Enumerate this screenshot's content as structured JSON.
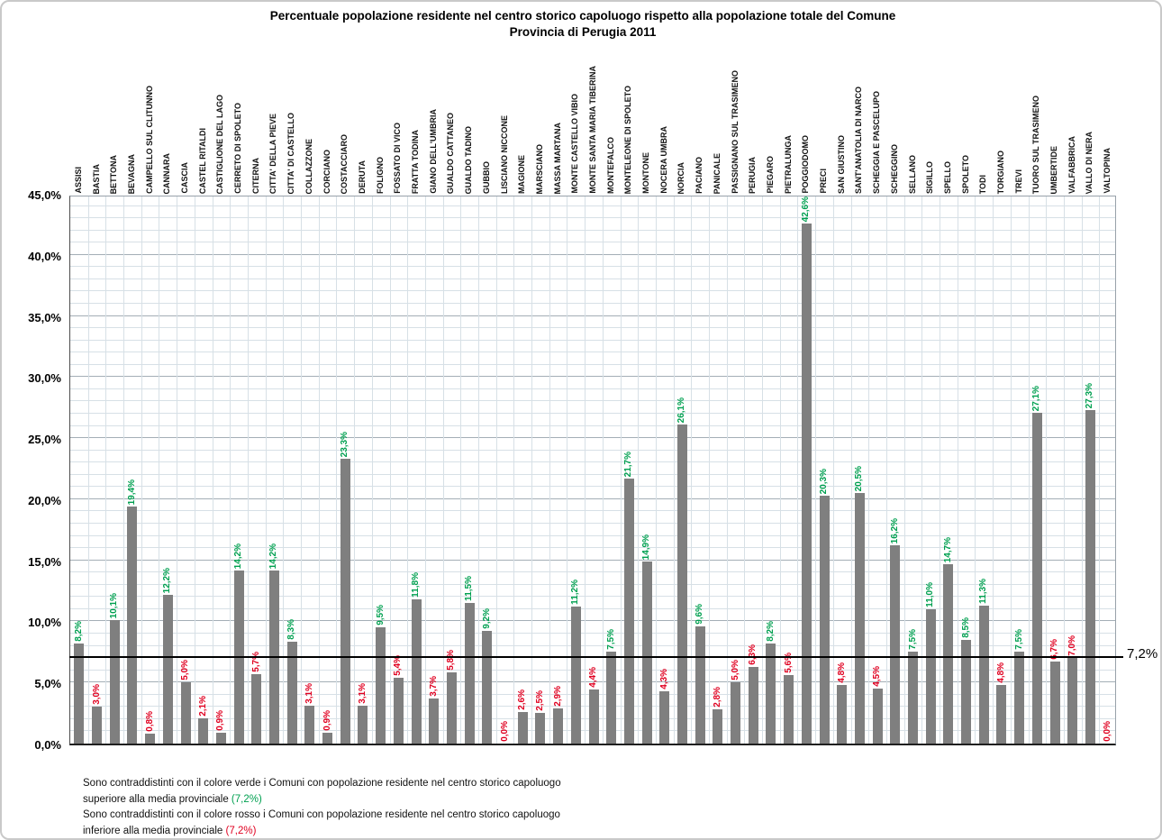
{
  "title": {
    "line1": "Percentuale popolazione residente nel centro storico capoluogo rispetto alla popolazione totale del Comune",
    "line2": "Provincia di Perugia  2011"
  },
  "chart_data": {
    "type": "bar",
    "title": "Percentuale popolazione residente nel centro storico capoluogo rispetto alla popolazione totale del Comune",
    "subtitle": "Provincia di Perugia 2011",
    "xlabel": "",
    "ylabel": "",
    "ylim": [
      0,
      45
    ],
    "y_major_step": 5,
    "y_minor_step": 1,
    "grid": "both",
    "legend_position": "none",
    "y_tick_labels": [
      "45,0%",
      "40,0%",
      "35,0%",
      "30,0%",
      "25,0%",
      "20,0%",
      "15,0%",
      "10,0%",
      "5,0%",
      "0,0%"
    ],
    "bar_color": "#7f7f7f",
    "above_color": "#00a050",
    "below_color": "#e00020",
    "reference_line": {
      "value": 7.2,
      "label": "7,2%"
    },
    "series": [
      {
        "name": "ASSISI",
        "value": 8.2,
        "label": "8,2%"
      },
      {
        "name": "BASTIA",
        "value": 3.0,
        "label": "3,0%"
      },
      {
        "name": "BETTONA",
        "value": 10.1,
        "label": "10,1%"
      },
      {
        "name": "BEVAGNA",
        "value": 19.4,
        "label": "19,4%"
      },
      {
        "name": "CAMPELLO SUL CLITUNNO",
        "value": 0.8,
        "label": "0,8%"
      },
      {
        "name": "CANNARA",
        "value": 12.2,
        "label": "12,2%"
      },
      {
        "name": "CASCIA",
        "value": 5.0,
        "label": "5,0%"
      },
      {
        "name": "CASTEL RITALDI",
        "value": 2.1,
        "label": "2,1%"
      },
      {
        "name": "CASTIGLIONE DEL LAGO",
        "value": 0.9,
        "label": "0,9%"
      },
      {
        "name": "CERRETO DI SPOLETO",
        "value": 14.2,
        "label": "14,2%"
      },
      {
        "name": "CITERNA",
        "value": 5.7,
        "label": "5,7%"
      },
      {
        "name": "CITTA' DELLA PIEVE",
        "value": 14.2,
        "label": "14,2%"
      },
      {
        "name": "CITTA' DI CASTELLO",
        "value": 8.3,
        "label": "8,3%"
      },
      {
        "name": "COLLAZZONE",
        "value": 3.1,
        "label": "3,1%"
      },
      {
        "name": "CORCIANO",
        "value": 0.9,
        "label": "0,9%"
      },
      {
        "name": "COSTACCIARO",
        "value": 23.3,
        "label": "23,3%"
      },
      {
        "name": "DERUTA",
        "value": 3.1,
        "label": "3,1%"
      },
      {
        "name": "FOLIGNO",
        "value": 9.5,
        "label": "9,5%"
      },
      {
        "name": "FOSSATO DI VICO",
        "value": 5.4,
        "label": "5,4%"
      },
      {
        "name": "FRATTA TODINA",
        "value": 11.8,
        "label": "11,8%"
      },
      {
        "name": "GIANO DELL'UMBRIA",
        "value": 3.7,
        "label": "3,7%"
      },
      {
        "name": "GUALDO CATTANEO",
        "value": 5.8,
        "label": "5,8%"
      },
      {
        "name": "GUALDO TADINO",
        "value": 11.5,
        "label": "11,5%"
      },
      {
        "name": "GUBBIO",
        "value": 9.2,
        "label": "9,2%"
      },
      {
        "name": "LISCIANO NICCONE",
        "value": 0.0,
        "label": "0,0%"
      },
      {
        "name": "MAGIONE",
        "value": 2.6,
        "label": "2,6%"
      },
      {
        "name": "MARSCIANO",
        "value": 2.5,
        "label": "2,5%"
      },
      {
        "name": "MASSA MARTANA",
        "value": 2.9,
        "label": "2,9%"
      },
      {
        "name": "MONTE CASTELLO VIBIO",
        "value": 11.2,
        "label": "11,2%"
      },
      {
        "name": "MONTE SANTA MARIA TIBERINA",
        "value": 4.4,
        "label": "4,4%"
      },
      {
        "name": "MONTEFALCO",
        "value": 7.5,
        "label": "7,5%"
      },
      {
        "name": "MONTELEONE DI SPOLETO",
        "value": 21.7,
        "label": "21,7%"
      },
      {
        "name": "MONTONE",
        "value": 14.9,
        "label": "14,9%"
      },
      {
        "name": "NOCERA UMBRA",
        "value": 4.3,
        "label": "4,3%"
      },
      {
        "name": "NORCIA",
        "value": 26.1,
        "label": "26,1%"
      },
      {
        "name": "PACIANO",
        "value": 9.6,
        "label": "9,6%"
      },
      {
        "name": "PANICALE",
        "value": 2.8,
        "label": "2,8%"
      },
      {
        "name": "PASSIGNANO SUL TRASIMENO",
        "value": 5.0,
        "label": "5,0%"
      },
      {
        "name": "PERUGIA",
        "value": 6.3,
        "label": "6,3%"
      },
      {
        "name": "PIEGARO",
        "value": 8.2,
        "label": "8,2%"
      },
      {
        "name": "PIETRALUNGA",
        "value": 5.6,
        "label": "5,6%"
      },
      {
        "name": "POGGIODOMO",
        "value": 42.6,
        "label": "42,6%"
      },
      {
        "name": "PRECI",
        "value": 20.3,
        "label": "20,3%"
      },
      {
        "name": "SAN GIUSTINO",
        "value": 4.8,
        "label": "4,8%"
      },
      {
        "name": "SANT'ANATOLIA DI NARCO",
        "value": 20.5,
        "label": "20,5%"
      },
      {
        "name": "SCHEGGIA E PASCELUPO",
        "value": 4.5,
        "label": "4,5%"
      },
      {
        "name": "SCHEGGINO",
        "value": 16.2,
        "label": "16,2%"
      },
      {
        "name": "SELLANO",
        "value": 7.5,
        "label": "7,5%"
      },
      {
        "name": "SIGILLO",
        "value": 11.0,
        "label": "11,0%"
      },
      {
        "name": "SPELLO",
        "value": 14.7,
        "label": "14,7%"
      },
      {
        "name": "SPOLETO",
        "value": 8.5,
        "label": "8,5%"
      },
      {
        "name": "TODI",
        "value": 11.3,
        "label": "11,3%"
      },
      {
        "name": "TORGIANO",
        "value": 4.8,
        "label": "4,8%"
      },
      {
        "name": "TREVI",
        "value": 7.5,
        "label": "7,5%"
      },
      {
        "name": "TUORO SUL TRASIMENO",
        "value": 27.1,
        "label": "27,1%"
      },
      {
        "name": "UMBERTIDE",
        "value": 6.7,
        "label": "6,7%"
      },
      {
        "name": "VALFABBRICA",
        "value": 7.0,
        "label": "7,0%"
      },
      {
        "name": "VALLO DI NERA",
        "value": 27.3,
        "label": "27,3%"
      },
      {
        "name": "VALTOPINA",
        "value": 0.0,
        "label": "0,0%"
      }
    ]
  },
  "footer": {
    "line1": "Sono contraddistinti con il colore verde i Comuni con popolazione  residente nel centro storico capoluogo",
    "line2_prefix": "superiore  alla media provinciale ",
    "line2_value": "(7,2%)",
    "line3": "Sono contraddistinti con il colore rosso i Comuni con popolazione  residente nel centro storico capoluogo",
    "line4_prefix": "inferiore alla media provinciale ",
    "line4_value": "(7,2%)"
  }
}
